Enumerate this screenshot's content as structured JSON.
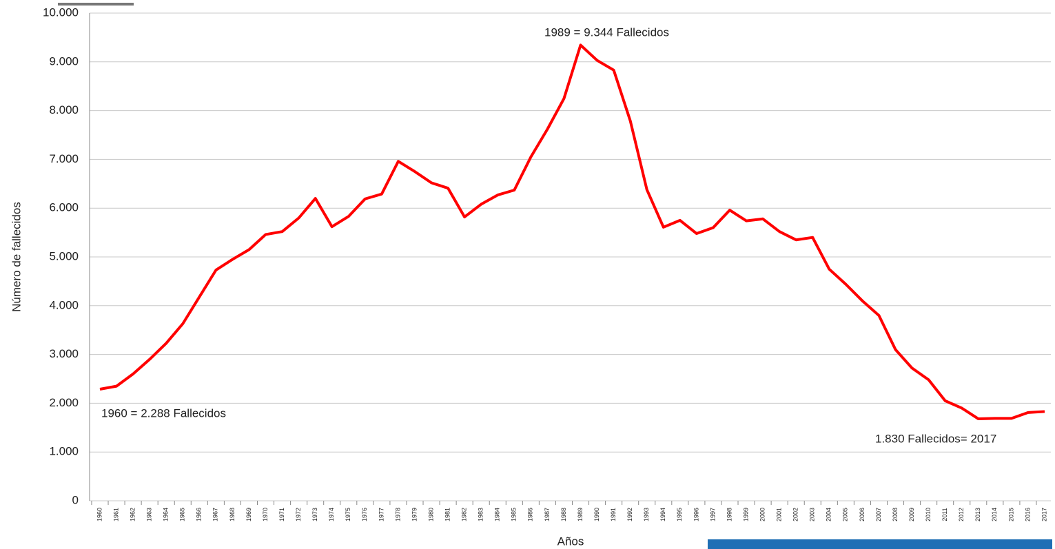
{
  "chart_data": {
    "type": "line",
    "y_label": "Número de fallecidos",
    "x_label": "Años",
    "categories": [
      "1960",
      "1961",
      "1962",
      "1963",
      "1964",
      "1965",
      "1966",
      "1967",
      "1968",
      "1969",
      "1970",
      "1971",
      "1972",
      "1973",
      "1974",
      "1975",
      "1976",
      "1977",
      "1978",
      "1979",
      "1980",
      "1981",
      "1982",
      "1983",
      "1984",
      "1985",
      "1986",
      "1987",
      "1988",
      "1989",
      "1990",
      "1991",
      "1992",
      "1993",
      "1994",
      "1995",
      "1996",
      "1997",
      "1998",
      "1999",
      "2000",
      "2001",
      "2002",
      "2003",
      "2004",
      "2005",
      "2006",
      "2007",
      "2008",
      "2009",
      "2010",
      "2011",
      "2012",
      "2013",
      "2014",
      "2015",
      "2016",
      "2017"
    ],
    "series": [
      {
        "name": "Fallecidos",
        "color": "#ff0000",
        "values": [
          2288,
          2350,
          2600,
          2900,
          3230,
          3630,
          4180,
          4730,
          4950,
          5150,
          5460,
          5520,
          5800,
          6200,
          5620,
          5830,
          6190,
          6290,
          6960,
          6750,
          6520,
          6410,
          5820,
          6080,
          6270,
          6370,
          7050,
          7620,
          8250,
          9344,
          9030,
          8830,
          7790,
          6380,
          5610,
          5750,
          5480,
          5600,
          5960,
          5740,
          5780,
          5520,
          5350,
          5400,
          4750,
          4440,
          4100,
          3800,
          3100,
          2720,
          2480,
          2050,
          1900,
          1680,
          1690,
          1690,
          1810,
          1830
        ]
      }
    ],
    "ylim": [
      0,
      10000
    ],
    "yticks": [
      0,
      {
        "value": 1000,
        "label": "1.000"
      },
      {
        "value": 2000,
        "label": "2.000"
      },
      {
        "value": 3000,
        "label": "3.000"
      },
      {
        "value": 4000,
        "label": "4.000"
      },
      {
        "value": 5000,
        "label": "5.000"
      },
      {
        "value": 6000,
        "label": "6.000"
      },
      {
        "value": 7000,
        "label": "7.000"
      },
      {
        "value": 8000,
        "label": "8.000"
      },
      {
        "value": 9000,
        "label": "9.000"
      },
      {
        "value": 10000,
        "label": "10.000"
      }
    ],
    "grid": true,
    "annotations": [
      "1989 = 9.344 Fallecidos",
      "1960 = 2.288 Fallecidos",
      "1.830 Fallecidos=  2017"
    ]
  }
}
